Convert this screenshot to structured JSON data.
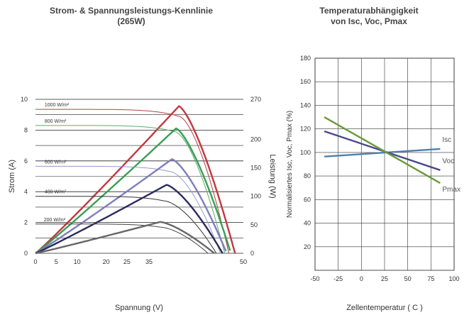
{
  "chart_data": [
    {
      "type": "line",
      "title": "Strom- & Spannungsleistungs-Kennlinie\n(265W)",
      "xlabel": "Spannung (V)",
      "ylabel": "Strom (A)",
      "y2label": "Leistung (W)",
      "xlim": [
        0,
        50
      ],
      "ylim": [
        0,
        10
      ],
      "y2lim": [
        0,
        270
      ],
      "x_ticks": [
        "0",
        "5",
        "10",
        "20",
        "25",
        "35",
        "50"
      ],
      "y_ticks": [
        "0",
        "2",
        "4",
        "6",
        "8",
        "10"
      ],
      "y2_ticks": [
        "0",
        "50",
        "100",
        "150",
        "200",
        "270"
      ],
      "grid": "horizontal",
      "colors": {
        "power": [
          "#c0393f",
          "#3a9e55",
          "#7e7cbd",
          "#2b2b5e",
          "#666666"
        ],
        "iv": [
          "#b54045",
          "#5aad68",
          "#9b98cd",
          "#333333",
          "#444444"
        ]
      },
      "series": [
        {
          "name": "1000 W/m²",
          "iv": {
            "isc": 9.35,
            "vmp": 34.5,
            "imp": 8.9,
            "voc": 46.5
          },
          "power_peak": {
            "v": 34.5,
            "p": 258
          }
        },
        {
          "name": "800 W/m²",
          "iv": {
            "isc": 8.3,
            "vmp": 33.5,
            "imp": 7.9,
            "voc": 45.5
          },
          "power_peak": {
            "v": 33.8,
            "p": 219
          }
        },
        {
          "name": "600 W/m²",
          "iv": {
            "isc": 5.65,
            "vmp": 32.5,
            "imp": 5.3,
            "voc": 44.5
          },
          "power_peak": {
            "v": 32.8,
            "p": 165
          }
        },
        {
          "name": "400 W/m²",
          "iv": {
            "isc": 3.7,
            "vmp": 31.0,
            "imp": 3.4,
            "voc": 43.5
          },
          "power_peak": {
            "v": 31.5,
            "p": 120
          }
        },
        {
          "name": "200 W/m²",
          "iv": {
            "isc": 1.9,
            "vmp": 30.0,
            "imp": 1.7,
            "voc": 41.5
          },
          "power_peak": {
            "v": 30.0,
            "p": 55
          }
        }
      ]
    },
    {
      "type": "line",
      "title": "Temperaturabhängigkeit\nvon Isc, Voc, Pmax",
      "xlabel": "Zellentemperatur ( C )",
      "ylabel": "Normalisiertes Isc, Voc, Pmax (%)",
      "xlim": [
        -50,
        100
      ],
      "ylim": [
        0,
        180
      ],
      "x_ticks": [
        -50,
        -25,
        0,
        25,
        50,
        75,
        100
      ],
      "y_ticks": [
        20,
        40,
        60,
        80,
        100,
        120,
        140,
        160,
        180
      ],
      "grid": "both",
      "series": [
        {
          "name": "Isc",
          "color": "#4b7fb0",
          "x": [
            -40,
            85
          ],
          "y": [
            96.5,
            103
          ]
        },
        {
          "name": "Voc",
          "color": "#4a4a8c",
          "x": [
            -40,
            85
          ],
          "y": [
            118,
            85
          ]
        },
        {
          "name": "Pmax",
          "color": "#6a9a3a",
          "x": [
            -40,
            85
          ],
          "y": [
            130,
            74
          ]
        }
      ]
    }
  ]
}
